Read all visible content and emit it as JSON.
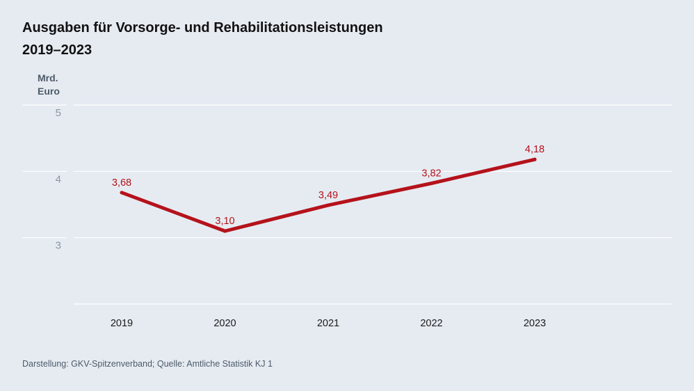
{
  "title_line1": "Ausgaben für Vorsorge- und Rehabilitationsleistungen",
  "title_line2": "2019–2023",
  "unit_line1": "Mrd.",
  "unit_line2": "Euro",
  "source": "Darstellung: GKV-Spitzenverband; Quelle: Amtliche Statistik KJ 1",
  "colors": {
    "line": "#b5121b",
    "label": "#b5121b",
    "grid": "#ffffff",
    "tick": "#8a95a3",
    "xtick": "#1a1a1a"
  },
  "chart_data": {
    "type": "line",
    "title": "Ausgaben für Vorsorge- und Rehabilitationsleistungen 2019–2023",
    "xlabel": "",
    "ylabel": "Mrd. Euro",
    "categories": [
      "2019",
      "2020",
      "2021",
      "2022",
      "2023"
    ],
    "values": [
      3.68,
      3.1,
      3.49,
      3.82,
      4.18
    ],
    "value_labels": [
      "3,68",
      "3,10",
      "3,49",
      "3,82",
      "4,18"
    ],
    "y_ticks": [
      {
        "value": 5,
        "label": "5"
      },
      {
        "value": 4,
        "label": "4"
      },
      {
        "value": 3,
        "label": "3"
      }
    ],
    "ylim": [
      2,
      5
    ],
    "grid": true,
    "legend": "none"
  }
}
